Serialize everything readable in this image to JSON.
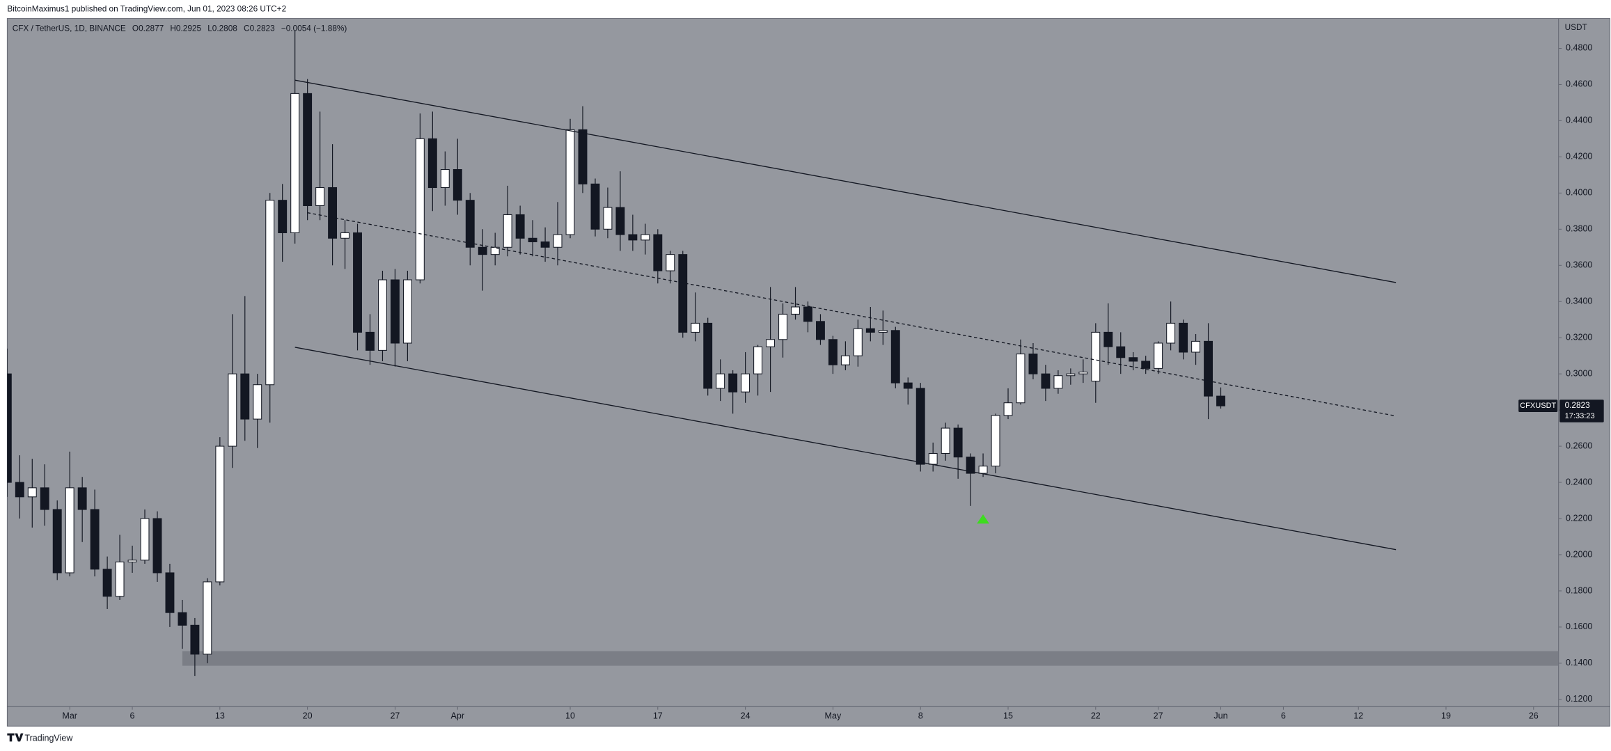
{
  "chart_data": {
    "type": "candlestick",
    "publisher": "BitcoinMaximus1 published on TradingView.com, Jun 01, 2023 08:26 UTC+2",
    "title": "CFX / TetherUS, 1D, BINANCE",
    "ohlc_labels": [
      "O",
      "H",
      "L",
      "C"
    ],
    "change": "−0.0054 (−1.88%)",
    "currency": "USDT",
    "symbol": "CFXUSDT",
    "countdown": "17:33:23",
    "brand": "TradingView",
    "up_color": "#ffffff",
    "down_color": "#131722",
    "grid": false,
    "x": [
      "2023-02-24",
      "2023-02-25",
      "2023-02-26",
      "2023-02-27",
      "2023-02-28",
      "2023-03-01",
      "2023-03-02",
      "2023-03-03",
      "2023-03-04",
      "2023-03-05",
      "2023-03-06",
      "2023-03-07",
      "2023-03-08",
      "2023-03-09",
      "2023-03-10",
      "2023-03-11",
      "2023-03-12",
      "2023-03-13",
      "2023-03-14",
      "2023-03-15",
      "2023-03-16",
      "2023-03-17",
      "2023-03-18",
      "2023-03-19",
      "2023-03-20",
      "2023-03-21",
      "2023-03-22",
      "2023-03-23",
      "2023-03-24",
      "2023-03-25",
      "2023-03-26",
      "2023-03-27",
      "2023-03-28",
      "2023-03-29",
      "2023-03-30",
      "2023-03-31",
      "2023-04-01",
      "2023-04-02",
      "2023-04-03",
      "2023-04-04",
      "2023-04-05",
      "2023-04-06",
      "2023-04-07",
      "2023-04-08",
      "2023-04-09",
      "2023-04-10",
      "2023-04-11",
      "2023-04-12",
      "2023-04-13",
      "2023-04-14",
      "2023-04-15",
      "2023-04-16",
      "2023-04-17",
      "2023-04-18",
      "2023-04-19",
      "2023-04-20",
      "2023-04-21",
      "2023-04-22",
      "2023-04-23",
      "2023-04-24",
      "2023-04-25",
      "2023-04-26",
      "2023-04-27",
      "2023-04-28",
      "2023-04-29",
      "2023-04-30",
      "2023-05-01",
      "2023-05-02",
      "2023-05-03",
      "2023-05-04",
      "2023-05-05",
      "2023-05-06",
      "2023-05-07",
      "2023-05-08",
      "2023-05-09",
      "2023-05-10",
      "2023-05-11",
      "2023-05-12",
      "2023-05-13",
      "2023-05-14",
      "2023-05-15",
      "2023-05-16",
      "2023-05-17",
      "2023-05-18",
      "2023-05-19",
      "2023-05-20",
      "2023-05-21",
      "2023-05-22",
      "2023-05-23",
      "2023-05-24",
      "2023-05-25",
      "2023-05-26",
      "2023-05-27",
      "2023-05-28",
      "2023-05-29",
      "2023-05-30",
      "2023-05-31",
      "2023-06-01"
    ],
    "open": [
      0.3,
      0.24,
      0.232,
      0.237,
      0.225,
      0.19,
      0.237,
      0.225,
      0.192,
      0.177,
      0.196,
      0.197,
      0.22,
      0.19,
      0.168,
      0.161,
      0.145,
      0.185,
      0.26,
      0.3,
      0.275,
      0.294,
      0.396,
      0.378,
      0.455,
      0.393,
      0.403,
      0.375,
      0.378,
      0.323,
      0.313,
      0.352,
      0.317,
      0.352,
      0.43,
      0.403,
      0.413,
      0.396,
      0.37,
      0.366,
      0.37,
      0.388,
      0.375,
      0.373,
      0.37,
      0.377,
      0.435,
      0.405,
      0.38,
      0.392,
      0.377,
      0.374,
      0.377,
      0.357,
      0.366,
      0.323,
      0.328,
      0.292,
      0.3,
      0.29,
      0.3,
      0.315,
      0.319,
      0.333,
      0.337,
      0.329,
      0.319,
      0.305,
      0.31,
      0.325,
      0.323,
      0.324,
      0.295,
      0.292,
      0.25,
      0.256,
      0.27,
      0.254,
      0.245,
      0.249,
      0.277,
      0.284,
      0.311,
      0.3,
      0.292,
      0.299,
      0.3,
      0.296,
      0.323,
      0.315,
      0.309,
      0.307,
      0.303,
      0.317,
      0.328,
      0.312,
      0.318,
      0.2877
    ],
    "close": [
      0.24,
      0.232,
      0.237,
      0.225,
      0.19,
      0.237,
      0.225,
      0.192,
      0.177,
      0.196,
      0.197,
      0.22,
      0.19,
      0.168,
      0.161,
      0.145,
      0.185,
      0.26,
      0.3,
      0.275,
      0.294,
      0.396,
      0.378,
      0.455,
      0.393,
      0.403,
      0.375,
      0.378,
      0.323,
      0.313,
      0.352,
      0.317,
      0.352,
      0.43,
      0.403,
      0.413,
      0.396,
      0.37,
      0.366,
      0.37,
      0.388,
      0.375,
      0.373,
      0.37,
      0.377,
      0.435,
      0.405,
      0.38,
      0.392,
      0.377,
      0.374,
      0.377,
      0.357,
      0.366,
      0.323,
      0.328,
      0.292,
      0.3,
      0.29,
      0.3,
      0.315,
      0.319,
      0.333,
      0.337,
      0.329,
      0.319,
      0.305,
      0.31,
      0.325,
      0.323,
      0.324,
      0.295,
      0.292,
      0.25,
      0.256,
      0.27,
      0.254,
      0.245,
      0.249,
      0.277,
      0.284,
      0.311,
      0.3,
      0.292,
      0.299,
      0.3,
      0.301,
      0.323,
      0.315,
      0.309,
      0.307,
      0.303,
      0.317,
      0.328,
      0.312,
      0.318,
      0.2877,
      0.2823
    ],
    "high": [
      0.314,
      0.255,
      0.253,
      0.25,
      0.23,
      0.257,
      0.243,
      0.236,
      0.199,
      0.211,
      0.205,
      0.225,
      0.224,
      0.195,
      0.175,
      0.165,
      0.187,
      0.265,
      0.333,
      0.343,
      0.3,
      0.4,
      0.405,
      0.49,
      0.463,
      0.445,
      0.427,
      0.385,
      0.383,
      0.333,
      0.357,
      0.358,
      0.357,
      0.444,
      0.445,
      0.423,
      0.43,
      0.4,
      0.38,
      0.378,
      0.404,
      0.393,
      0.385,
      0.381,
      0.395,
      0.441,
      0.448,
      0.408,
      0.403,
      0.412,
      0.388,
      0.383,
      0.38,
      0.368,
      0.368,
      0.345,
      0.331,
      0.308,
      0.302,
      0.312,
      0.316,
      0.348,
      0.339,
      0.348,
      0.34,
      0.333,
      0.321,
      0.318,
      0.33,
      0.337,
      0.335,
      0.326,
      0.298,
      0.295,
      0.262,
      0.273,
      0.272,
      0.256,
      0.256,
      0.278,
      0.292,
      0.319,
      0.317,
      0.305,
      0.302,
      0.303,
      0.308,
      0.328,
      0.339,
      0.323,
      0.312,
      0.31,
      0.318,
      0.34,
      0.33,
      0.322,
      0.328,
      0.2925
    ],
    "low": [
      0.232,
      0.22,
      0.215,
      0.216,
      0.186,
      0.188,
      0.207,
      0.188,
      0.17,
      0.175,
      0.19,
      0.195,
      0.185,
      0.16,
      0.148,
      0.133,
      0.14,
      0.183,
      0.248,
      0.263,
      0.259,
      0.273,
      0.362,
      0.372,
      0.385,
      0.385,
      0.36,
      0.358,
      0.313,
      0.305,
      0.307,
      0.304,
      0.307,
      0.35,
      0.39,
      0.393,
      0.388,
      0.36,
      0.346,
      0.36,
      0.365,
      0.366,
      0.365,
      0.362,
      0.36,
      0.375,
      0.4,
      0.376,
      0.375,
      0.368,
      0.368,
      0.366,
      0.35,
      0.35,
      0.32,
      0.318,
      0.288,
      0.285,
      0.278,
      0.284,
      0.288,
      0.29,
      0.309,
      0.33,
      0.323,
      0.316,
      0.3,
      0.302,
      0.304,
      0.318,
      0.316,
      0.292,
      0.283,
      0.246,
      0.246,
      0.252,
      0.242,
      0.227,
      0.243,
      0.245,
      0.275,
      0.283,
      0.297,
      0.285,
      0.289,
      0.294,
      0.295,
      0.284,
      0.305,
      0.3,
      0.302,
      0.3,
      0.3,
      0.313,
      0.308,
      0.305,
      0.275,
      0.2808
    ],
    "xlim": [
      "2023-02-24",
      "2023-06-28"
    ],
    "ylim": [
      0.116,
      0.4965
    ],
    "xticks": [
      {
        "value": "2023-03-01",
        "label": "Mar"
      },
      {
        "value": "2023-03-06",
        "label": "6"
      },
      {
        "value": "2023-03-13",
        "label": "13"
      },
      {
        "value": "2023-03-20",
        "label": "20"
      },
      {
        "value": "2023-03-27",
        "label": "27"
      },
      {
        "value": "2023-04-01",
        "label": "Apr"
      },
      {
        "value": "2023-04-10",
        "label": "10"
      },
      {
        "value": "2023-04-17",
        "label": "17"
      },
      {
        "value": "2023-04-24",
        "label": "24"
      },
      {
        "value": "2023-05-01",
        "label": "May"
      },
      {
        "value": "2023-05-08",
        "label": "8"
      },
      {
        "value": "2023-05-15",
        "label": "15"
      },
      {
        "value": "2023-05-22",
        "label": "22"
      },
      {
        "value": "2023-05-27",
        "label": "27"
      },
      {
        "value": "2023-06-01",
        "label": "Jun"
      },
      {
        "value": "2023-06-06",
        "label": "6"
      },
      {
        "value": "2023-06-12",
        "label": "12"
      },
      {
        "value": "2023-06-19",
        "label": "19"
      },
      {
        "value": "2023-06-26",
        "label": "26"
      }
    ],
    "yticks": [
      {
        "value": 0.12,
        "label": "0.1200"
      },
      {
        "value": 0.14,
        "label": "0.1400"
      },
      {
        "value": 0.16,
        "label": "0.1600"
      },
      {
        "value": 0.18,
        "label": "0.1800"
      },
      {
        "value": 0.2,
        "label": "0.2000"
      },
      {
        "value": 0.22,
        "label": "0.2200"
      },
      {
        "value": 0.24,
        "label": "0.2400"
      },
      {
        "value": 0.26,
        "label": "0.2600"
      },
      {
        "value": 0.28,
        "label": "0.2800"
      },
      {
        "value": 0.3,
        "label": "0.3000"
      },
      {
        "value": 0.32,
        "label": "0.3200"
      },
      {
        "value": 0.34,
        "label": "0.3400"
      },
      {
        "value": 0.36,
        "label": "0.3600"
      },
      {
        "value": 0.38,
        "label": "0.3800"
      },
      {
        "value": 0.4,
        "label": "0.4000"
      },
      {
        "value": 0.42,
        "label": "0.4200"
      },
      {
        "value": 0.44,
        "label": "0.4400"
      },
      {
        "value": 0.46,
        "label": "0.4600"
      },
      {
        "value": 0.48,
        "label": "0.4800"
      }
    ],
    "lines": [
      {
        "style": "solid",
        "color": "#131722",
        "points": [
          {
            "x": "2023-03-19",
            "y": 0.4624
          },
          {
            "x": "2023-06-15",
            "y": 0.3505
          }
        ]
      },
      {
        "style": "dashed",
        "color": "#131722",
        "points": [
          {
            "x": "2023-03-20",
            "y": 0.3891
          },
          {
            "x": "2023-06-15",
            "y": 0.2767
          }
        ]
      },
      {
        "style": "solid",
        "color": "#131722",
        "points": [
          {
            "x": "2023-03-19",
            "y": 0.3147
          },
          {
            "x": "2023-06-15",
            "y": 0.2028
          }
        ]
      }
    ],
    "zones": [
      {
        "x": "2023-03-10",
        "low": 0.1386,
        "high": 0.1467,
        "color": "#7b7e86"
      }
    ],
    "markers": [
      {
        "x": "2023-05-13",
        "y": 0.2195,
        "color": "#3ddc1f"
      }
    ]
  }
}
